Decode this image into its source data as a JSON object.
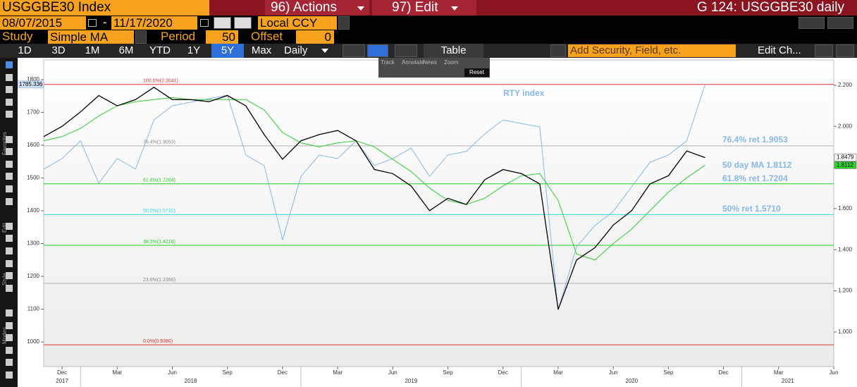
{
  "header": {
    "security": "USGGBE30 Index",
    "actions": "96) Actions",
    "edit": "97) Edit",
    "title": "G 124: USGGBE30 daily"
  },
  "date_bar": {
    "start": "08/07/2015",
    "dash": "-",
    "end": "11/17/2020",
    "currency": "Local CCY"
  },
  "study_bar": {
    "study_label": "Study",
    "study": "Simple MA",
    "period_label": "Period",
    "period": 50,
    "offset_label": "Offset",
    "offset": 0
  },
  "range_bar": {
    "ranges": [
      "1D",
      "3D",
      "1M",
      "6M",
      "YTD",
      "1Y",
      "5Y",
      "Max"
    ],
    "selected": 6,
    "frequency": "Daily",
    "table": "Table",
    "add_security": "Add Security, Field, etc.",
    "edit_chart": "Edit Ch..."
  },
  "popup": {
    "items": [
      "Track",
      "Annotate",
      "News",
      "Zoom"
    ],
    "reset": "Reset"
  },
  "sidebar": [
    "Favorites",
    "Edit",
    "Style",
    "Modes"
  ],
  "chart_data": {
    "type": "line",
    "x": [
      "2017-11",
      "2017-12",
      "2018-01",
      "2018-02",
      "2018-03",
      "2018-04",
      "2018-05",
      "2018-06",
      "2018-07",
      "2018-08",
      "2018-09",
      "2018-10",
      "2018-11",
      "2018-12",
      "2019-01",
      "2019-02",
      "2019-03",
      "2019-04",
      "2019-05",
      "2019-06",
      "2019-07",
      "2019-08",
      "2019-09",
      "2019-10",
      "2019-11",
      "2019-12",
      "2020-01",
      "2020-02",
      "2020-03",
      "2020-04",
      "2020-05",
      "2020-06",
      "2020-07",
      "2020-08",
      "2020-09",
      "2020-10",
      "2020-11"
    ],
    "xlim": [
      "2017-11",
      "2021-06"
    ],
    "xticks": [
      {
        "value": "2017-12",
        "label": "Dec"
      },
      {
        "value": "2018-03",
        "label": "Mar"
      },
      {
        "value": "2018-06",
        "label": "Jun"
      },
      {
        "value": "2018-09",
        "label": "Sep"
      },
      {
        "value": "2018-12",
        "label": "Dec"
      },
      {
        "value": "2019-03",
        "label": "Mar"
      },
      {
        "value": "2019-06",
        "label": "Jun"
      },
      {
        "value": "2019-09",
        "label": "Sep"
      },
      {
        "value": "2019-12",
        "label": "Dec"
      },
      {
        "value": "2020-03",
        "label": "Mar"
      },
      {
        "value": "2020-06",
        "label": "Jun"
      },
      {
        "value": "2020-09",
        "label": "Sep"
      },
      {
        "value": "2020-12",
        "label": "Dec"
      },
      {
        "value": "2021-03",
        "label": "Mar"
      },
      {
        "value": "2021-06",
        "label": "Jun"
      }
    ],
    "years": [
      2017,
      2018,
      2019,
      2020,
      2021
    ],
    "ylim": [
      925,
      1860
    ],
    "yticks": [
      1000,
      1100,
      1200,
      1300,
      1400,
      1500,
      1600,
      1700,
      1800
    ],
    "y2lim": [
      0.832,
      2.323
    ],
    "y2ticks": [
      {
        "value": 1.0,
        "label": "1.000"
      },
      {
        "value": 1.2,
        "label": "1.200"
      },
      {
        "value": 1.4,
        "label": "1.400"
      },
      {
        "value": 1.6,
        "label": "1.600"
      },
      {
        "value": 1.8,
        "label": "1.800"
      },
      {
        "value": 2.0,
        "label": "2.000"
      },
      {
        "value": 2.2,
        "label": "2.200"
      }
    ],
    "series": [
      {
        "name": "RTY index",
        "color": "#86b8ea",
        "last_label": "1785.336",
        "values": [
          1527,
          1559,
          1613,
          1484,
          1559,
          1527,
          1677,
          1720,
          1731,
          1742,
          1753,
          1570,
          1538,
          1312,
          1505,
          1570,
          1559,
          1613,
          1538,
          1559,
          1591,
          1505,
          1570,
          1581,
          1634,
          1677,
          1666,
          1656,
          1097,
          1290,
          1355,
          1398,
          1473,
          1548,
          1570,
          1613,
          1785.336
        ]
      },
      {
        "color": "#2ed12e",
        "axis": "y2",
        "last_label": "1.8112",
        "values": [
          1.93,
          1.95,
          1.99,
          2.05,
          2.1,
          2.12,
          2.13,
          2.14,
          2.13,
          2.13,
          2.13,
          2.13,
          2.08,
          1.97,
          1.92,
          1.9,
          1.92,
          1.93,
          1.9,
          1.84,
          1.78,
          1.7,
          1.64,
          1.62,
          1.65,
          1.71,
          1.76,
          1.77,
          1.64,
          1.38,
          1.35,
          1.43,
          1.5,
          1.59,
          1.68,
          1.75,
          1.8112
        ]
      },
      {
        "color": "#000000",
        "axis": "y2",
        "last_label": "1.8479",
        "values": [
          1.95,
          2.0,
          2.07,
          2.15,
          2.1,
          2.13,
          2.19,
          2.13,
          2.13,
          2.12,
          2.15,
          2.1,
          1.96,
          1.84,
          1.93,
          1.96,
          1.98,
          1.93,
          1.79,
          1.77,
          1.71,
          1.59,
          1.65,
          1.62,
          1.74,
          1.79,
          1.77,
          1.72,
          1.11,
          1.35,
          1.41,
          1.52,
          1.59,
          1.72,
          1.76,
          1.88,
          1.8479
        ]
      }
    ],
    "levels": [
      {
        "label": "100.0%(2.2041)",
        "value": 2.2041,
        "color": "#e03030"
      },
      {
        "label": "76.4%(1.9053)",
        "value": 1.9053,
        "color": "#b0b0b0"
      },
      {
        "label": "61.8%(1.7204)",
        "value": 1.7204,
        "color": "#22cc22"
      },
      {
        "label": "50.0%(1.5710)",
        "value": 1.571,
        "color": "#33dddd"
      },
      {
        "label": "38.2%(1.4216)",
        "value": 1.4216,
        "color": "#22cc22"
      },
      {
        "label": "23.6%(1.2366)",
        "value": 1.2366,
        "color": "#b0b0b0"
      },
      {
        "label": "0.0%(0.9380)",
        "value": 0.938,
        "color": "#e03030"
      }
    ],
    "annotations": [
      "76.4% ret 1.9053",
      "50 day MA 1.8112",
      "61.8% ret 1.7204",
      "50% ret 1.5710"
    ]
  }
}
